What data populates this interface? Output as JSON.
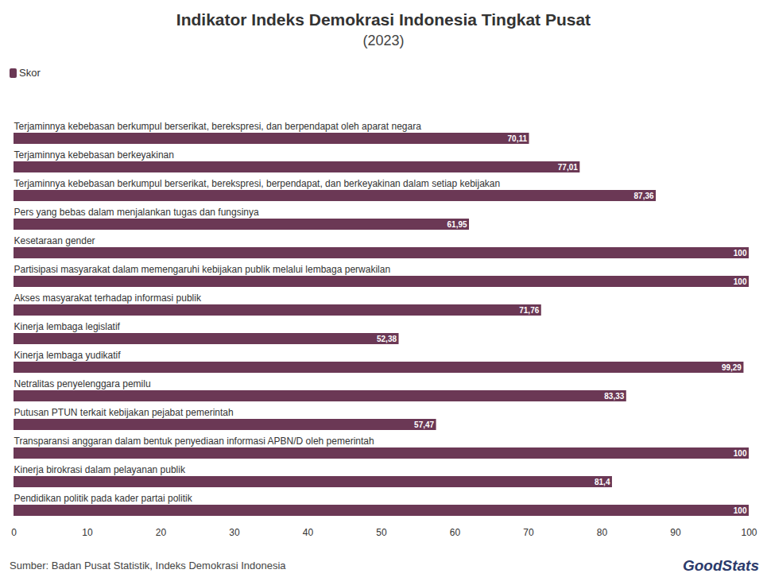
{
  "chart_data": {
    "type": "bar",
    "orientation": "horizontal",
    "title": "Indikator Indeks Demokrasi Indonesia Tingkat Pusat",
    "subtitle": "(2023)",
    "source": "Sumber: Badan Pusat Statistik, Indeks Demokrasi Indonesia",
    "logo": "GoodStats",
    "categories": [
      "Terjaminnya kebebasan berkumpul berserikat, berekspresi, dan berpendapat oleh aparat negara",
      "Terjaminnya kebebasan berkeyakinan",
      "Terjaminnya kebebasan berkumpul berserikat, berekspresi, berpendapat, dan berkeyakinan dalam setiap kebijakan",
      "Pers yang bebas dalam menjalankan tugas dan fungsinya",
      "Kesetaraan gender",
      "Partisipasi masyarakat dalam memengaruhi kebijakan publik melalui lembaga perwakilan",
      "Akses masyarakat terhadap informasi publik",
      "Kinerja lembaga legislatif",
      "Kinerja lembaga yudikatif",
      "Netralitas penyelenggara pemilu",
      "Putusan PTUN terkait kebijakan pejabat pemerintah",
      "Transparansi anggaran dalam bentuk penyediaan informasi APBN/D oleh pemerintah",
      "Kinerja birokrasi dalam pelayanan publik",
      "Pendidikan politik pada kader partai politik"
    ],
    "series": [
      {
        "name": "Skor",
        "color": "#6b3855",
        "values": [
          70.11,
          77.01,
          87.36,
          61.95,
          100,
          100,
          71.76,
          52.38,
          99.29,
          83.33,
          57.47,
          100,
          81.4,
          100
        ],
        "value_labels": [
          "70,11",
          "77,01",
          "87,36",
          "61,95",
          "100",
          "100",
          "71,76",
          "52,38",
          "99,29",
          "83,33",
          "57,47",
          "100",
          "81,4",
          "100"
        ]
      }
    ],
    "xlim": [
      0,
      100
    ],
    "xticks": [
      0,
      10,
      20,
      30,
      40,
      50,
      60,
      70,
      80,
      90,
      100
    ],
    "grid": false,
    "legend": "top-left",
    "data_labels": true
  }
}
